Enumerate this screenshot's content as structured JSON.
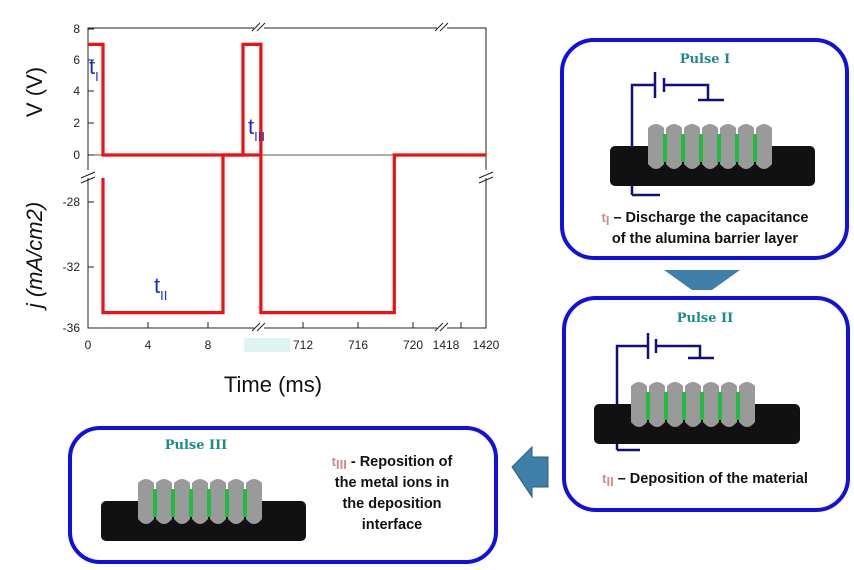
{
  "chart_data": {
    "type": "line",
    "xlabel": "Time (ms)",
    "ylabel_top": "V (V)",
    "ylabel_bottom": "j (mA/cm2)",
    "x_ticks": [
      "0",
      "4",
      "8",
      "712",
      "716",
      "720",
      "1418",
      "1420"
    ],
    "y_ticks_voltage": [
      "8",
      "6",
      "4",
      "2",
      "0"
    ],
    "y_ticks_current": [
      "-28",
      "-32",
      "-36"
    ],
    "voltage_series": {
      "x": [
        0,
        1,
        1,
        709,
        709,
        710.3,
        710.3
      ],
      "y": [
        7,
        7,
        0,
        0,
        7,
        7,
        0
      ]
    },
    "current_series": {
      "x": [
        1,
        1,
        9,
        9,
        710.3,
        710.3,
        720,
        720,
        1420
      ],
      "y": [
        -25,
        -35,
        -35,
        0,
        0,
        -35,
        -35,
        0,
        0
      ]
    },
    "annotations": [
      {
        "symbol": "t",
        "sub": "I"
      },
      {
        "symbol": "t",
        "sub": "II"
      },
      {
        "symbol": "t",
        "sub": "III"
      }
    ]
  },
  "pulses": [
    {
      "title": "Pulse I",
      "t_sub": "I",
      "caption_lines": [
        "– Discharge the capacitance",
        "of the alumina barrier layer"
      ]
    },
    {
      "title": "Pulse II",
      "t_sub": "II",
      "caption_lines": [
        "– Deposition of the material"
      ]
    },
    {
      "title": "Pulse III",
      "t_sub": "III",
      "caption_lines": [
        "- Reposition of",
        "the metal ions in",
        "the deposition",
        "interface"
      ]
    }
  ],
  "colors": {
    "panel_border": "#1010e0",
    "signal": "#ee1111",
    "arrow": "#3f7fa8",
    "pore": "#9a9a9a",
    "wire": "#10107a",
    "deposit": "#22bb44"
  }
}
